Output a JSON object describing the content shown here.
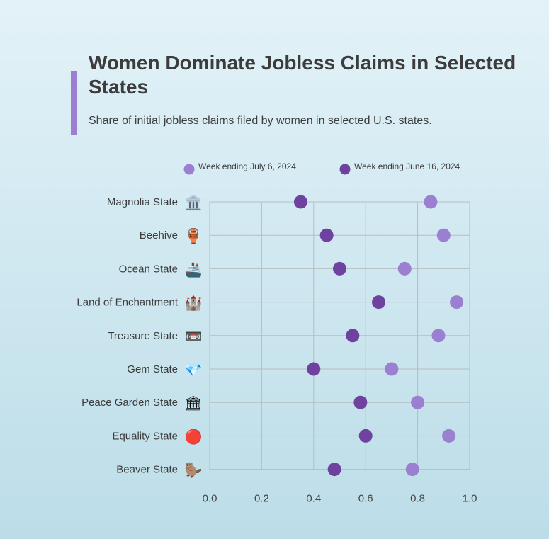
{
  "chart_data": {
    "type": "scatter",
    "title": "Women Dominate Jobless Claims in Selected States",
    "subtitle": "Share of initial jobless claims filed by women in selected U.S. states.",
    "xlim": [
      0,
      1.0
    ],
    "x_ticks": [
      "0.0",
      "0.2",
      "0.4",
      "0.6",
      "0.8",
      "1.0"
    ],
    "grid": true,
    "legend_position": "top",
    "categories": [
      "Magnolia State",
      "Beehive",
      "Ocean State",
      "Land of Enchantment",
      "Treasure State",
      "Gem State",
      "Peace Garden State",
      "Equality State",
      "Beaver State"
    ],
    "category_icons": [
      "🏛️",
      "🏺",
      "🚢",
      "🏰",
      "📼",
      "💎",
      "🏛",
      "🔴",
      "🦫"
    ],
    "series": [
      {
        "name": "Week ending July 6, 2024",
        "color": "#9b7fd0",
        "values": [
          0.85,
          0.9,
          0.75,
          0.95,
          0.88,
          0.7,
          0.8,
          0.92,
          0.78
        ]
      },
      {
        "name": "Week ending June 16, 2024",
        "color": "#6f42a0",
        "values": [
          0.35,
          0.45,
          0.5,
          0.65,
          0.55,
          0.4,
          0.58,
          0.6,
          0.48
        ]
      }
    ]
  }
}
